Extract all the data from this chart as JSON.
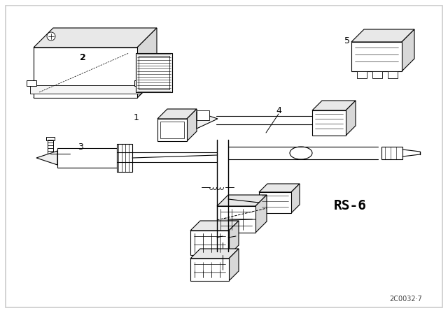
{
  "background_color": "#ffffff",
  "border_color": "#000000",
  "line_color": "#000000",
  "figure_width": 6.4,
  "figure_height": 4.48,
  "dpi": 100,
  "watermark": "2C0032·7",
  "label_rs6": "RS-6",
  "label1": "1",
  "label2": "2",
  "label3": "3",
  "label4": "4",
  "label5": "5"
}
